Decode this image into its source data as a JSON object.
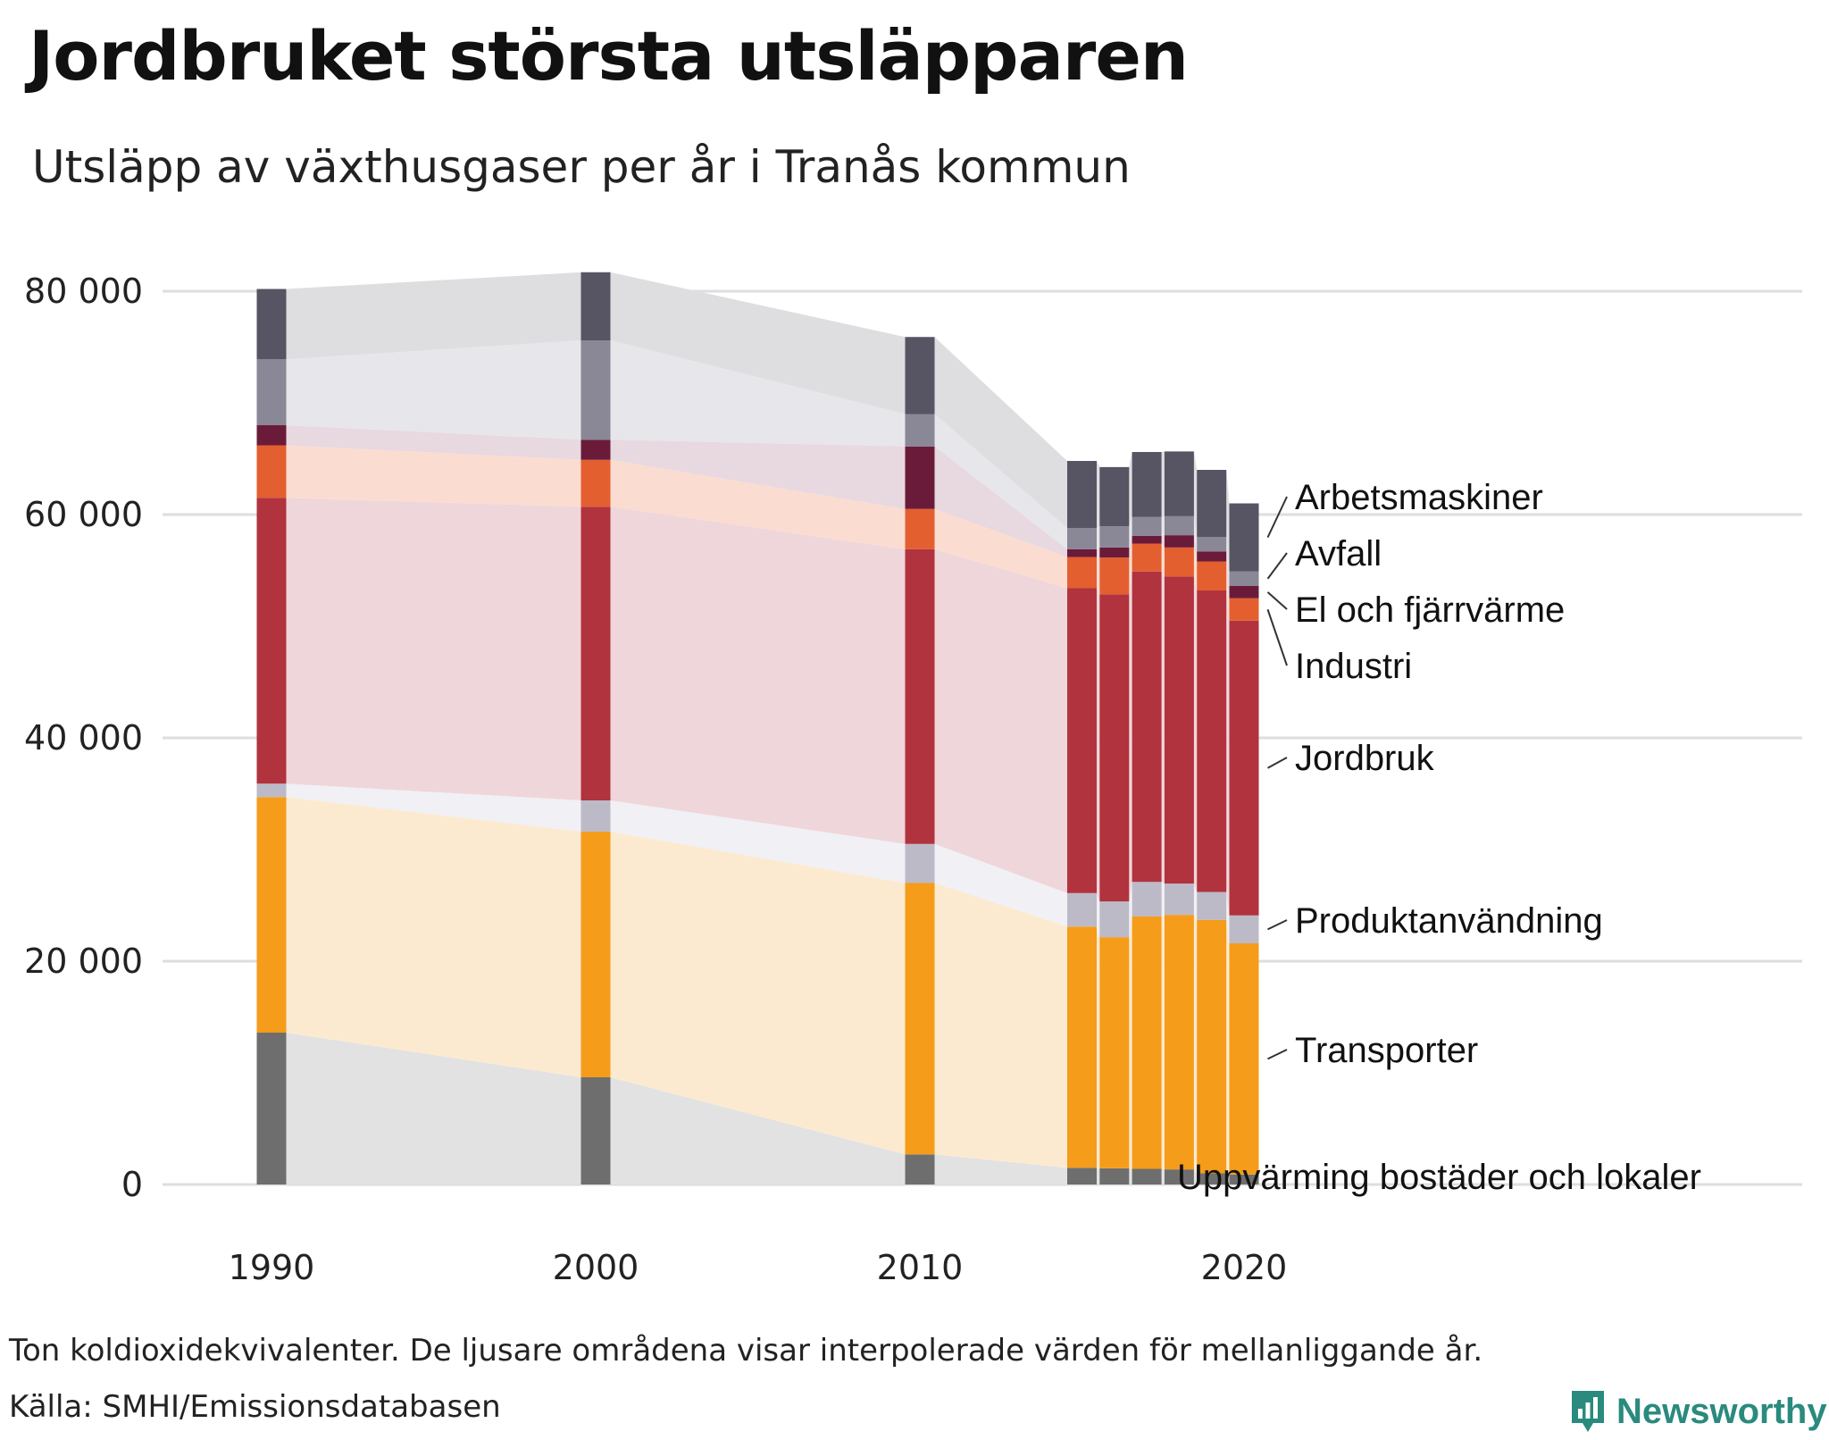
{
  "title": "Jordbruket största utsläpparen",
  "subtitle": "Utsläpp av växthusgaser per år i Tranås kommun",
  "note": "Ton koldioxidekvivalenter. De ljusare områdena visar interpolerade värden för mellanliggande år.",
  "source": "Källa: SMHI/Emissionsdatabasen",
  "brand": "Newsworthy",
  "chart_data": {
    "type": "stacked-bar",
    "title": "Jordbruket största utsläpparen",
    "subtitle": "Utsläpp av växthusgaser per år i Tranås kommun",
    "xlabel": "",
    "ylabel": "Ton koldioxidekvivalenter",
    "ylim": [
      0,
      80000
    ],
    "grid": true,
    "categories": [
      1990,
      2000,
      2010,
      2015,
      2016,
      2017,
      2018,
      2019,
      2020
    ],
    "x_ticks": [
      1990,
      2000,
      2010,
      2020
    ],
    "y_ticks": [
      0,
      20000,
      40000,
      60000,
      80000
    ],
    "y_tick_labels": [
      "0",
      "20 000",
      "40 000",
      "60 000",
      "80 000"
    ],
    "series": [
      {
        "name": "Uppvärming bostäder och lokaler",
        "color": "#6e6e6e",
        "band_color": "#e2e2e3",
        "values": [
          13600,
          9600,
          2700,
          1500,
          1450,
          1400,
          1350,
          1000,
          900
        ]
      },
      {
        "name": "Transporter",
        "color": "#f59c1a",
        "band_color": "#fcead0",
        "values": [
          21100,
          22000,
          24300,
          21600,
          20700,
          22600,
          22800,
          22700,
          20700
        ]
      },
      {
        "name": "Produktanvändning",
        "color": "#bdbac8",
        "band_color": "#f1f0f4",
        "values": [
          1200,
          2800,
          3500,
          3000,
          3200,
          3100,
          2800,
          2500,
          2500
        ]
      },
      {
        "name": "Jordbruk",
        "color": "#b0333e",
        "band_color": "#efd6da",
        "values": [
          25600,
          26300,
          26400,
          27300,
          27500,
          27800,
          27500,
          27000,
          26400
        ]
      },
      {
        "name": "Industri",
        "color": "#e35f30",
        "band_color": "#fbdcd1",
        "values": [
          4700,
          4200,
          3600,
          2800,
          3300,
          2500,
          2600,
          2600,
          2000
        ]
      },
      {
        "name": "El och fjärrvärme",
        "color": "#6b1b3a",
        "band_color": "#e8d8df",
        "values": [
          1800,
          1800,
          5600,
          700,
          900,
          700,
          1100,
          900,
          1100
        ]
      },
      {
        "name": "Avfall",
        "color": "#8a8796",
        "band_color": "#e7e6ea",
        "values": [
          5900,
          8900,
          2900,
          1900,
          1900,
          1700,
          1700,
          1300,
          1300
        ]
      },
      {
        "name": "Arbetsmaskiner",
        "color": "#575463",
        "band_color": "#dedde0",
        "values": [
          6300,
          6100,
          6900,
          6000,
          5300,
          5800,
          5800,
          6000,
          6100
        ]
      }
    ],
    "legend": {
      "placement": "right",
      "labels": [
        "Arbetsmaskiner",
        "Avfall",
        "El och fjärrvärme",
        "Industri",
        "Jordbruk",
        "Produktanvändning",
        "Transporter",
        "Uppvärming bostäder och lokaler"
      ]
    }
  }
}
